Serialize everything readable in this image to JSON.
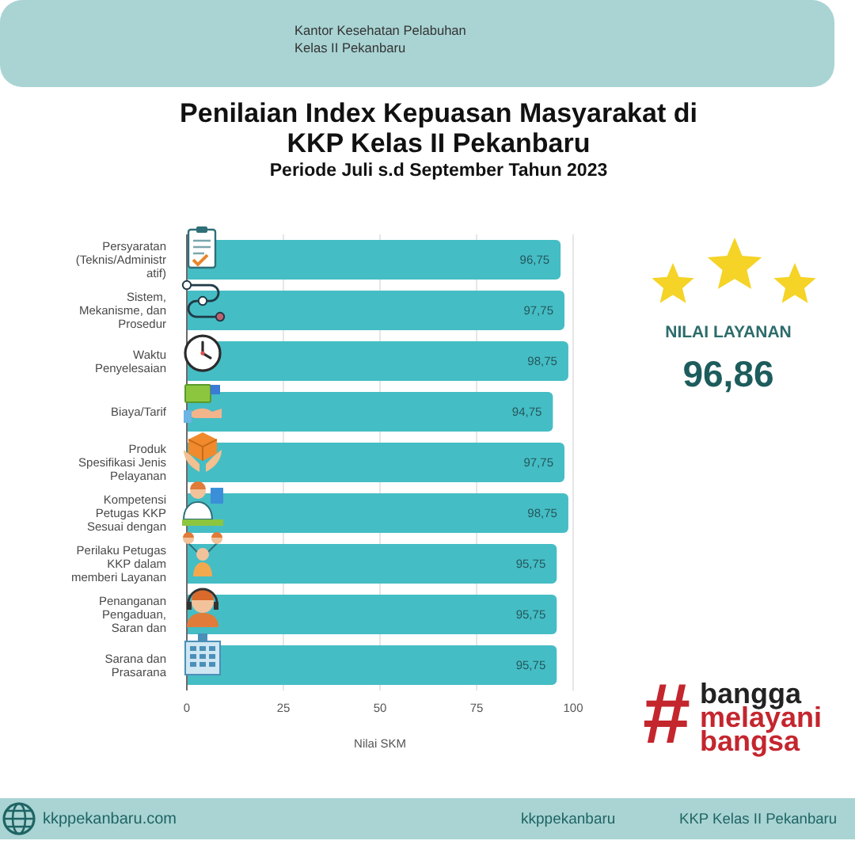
{
  "chart_data": {
    "type": "bar",
    "orientation": "horizontal",
    "title": "Penilaian Index Kepuasan Masyarakat di KKP Kelas II Pekanbaru",
    "subtitle": "Periode Juli s.d September Tahun 2023",
    "xlabel": "Nilai SKM",
    "categories": [
      "Persyaratan (Teknis/Administratif)",
      "Sistem, Mekanisme, dan Prosedur",
      "Waktu Penyelesaian",
      "Biaya/Tarif",
      "Produk Spesifikasi Jenis Pelayanan",
      "Kompetensi Petugas KKP Sesuai dengan",
      "Perilaku Petugas KKP dalam memberi Layanan",
      "Penanganan Pengaduan, Saran dan",
      "Sarana dan Prasarana"
    ],
    "values": [
      96.75,
      97.75,
      98.75,
      94.75,
      97.75,
      98.75,
      95.75,
      95.75,
      95.75
    ],
    "value_labels": [
      "96,75",
      "97,75",
      "98,75",
      "94,75",
      "97,75",
      "98,75",
      "95,75",
      "95,75",
      "95,75"
    ],
    "color": "#45bdc5",
    "xlim": [
      0,
      100
    ],
    "xticks": [
      0,
      25,
      50,
      75,
      100
    ],
    "grid": "x",
    "annotations": [
      "Kantor Kesehatan Pelabuhan Kelas II Pekanbaru",
      "NILAI LAYANAN",
      "96,86",
      "#bangga melayani bangsa",
      "kkppekanbaru.com",
      "kkppekanbaru",
      "KKP Kelas II Pekanbaru"
    ]
  }
}
